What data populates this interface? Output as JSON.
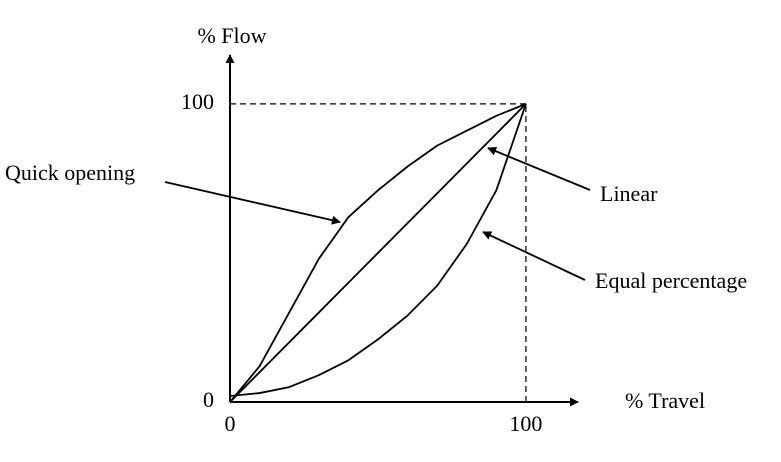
{
  "chart_data": {
    "type": "line",
    "xlabel": "% Travel",
    "ylabel": "% Flow",
    "x": [
      0,
      10,
      20,
      30,
      40,
      50,
      60,
      70,
      80,
      90,
      100
    ],
    "series": [
      {
        "name": "Quick opening",
        "color": "#000000",
        "values": [
          0,
          12,
          30,
          48,
          62,
          71,
          79,
          86,
          91,
          96,
          100
        ]
      },
      {
        "name": "Linear",
        "color": "#000000",
        "values": [
          0,
          10,
          20,
          30,
          40,
          50,
          60,
          70,
          80,
          90,
          100
        ]
      },
      {
        "name": "Equal percentage",
        "color": "#000000",
        "values": [
          2,
          3,
          5,
          9,
          14,
          21,
          29,
          39,
          53,
          71,
          100
        ]
      }
    ],
    "xlim": [
      0,
      117.6
    ],
    "ylim": [
      0,
      116.4
    ],
    "xticks": [
      0,
      100
    ],
    "yticks": [
      0,
      100
    ],
    "grid": false
  }
}
